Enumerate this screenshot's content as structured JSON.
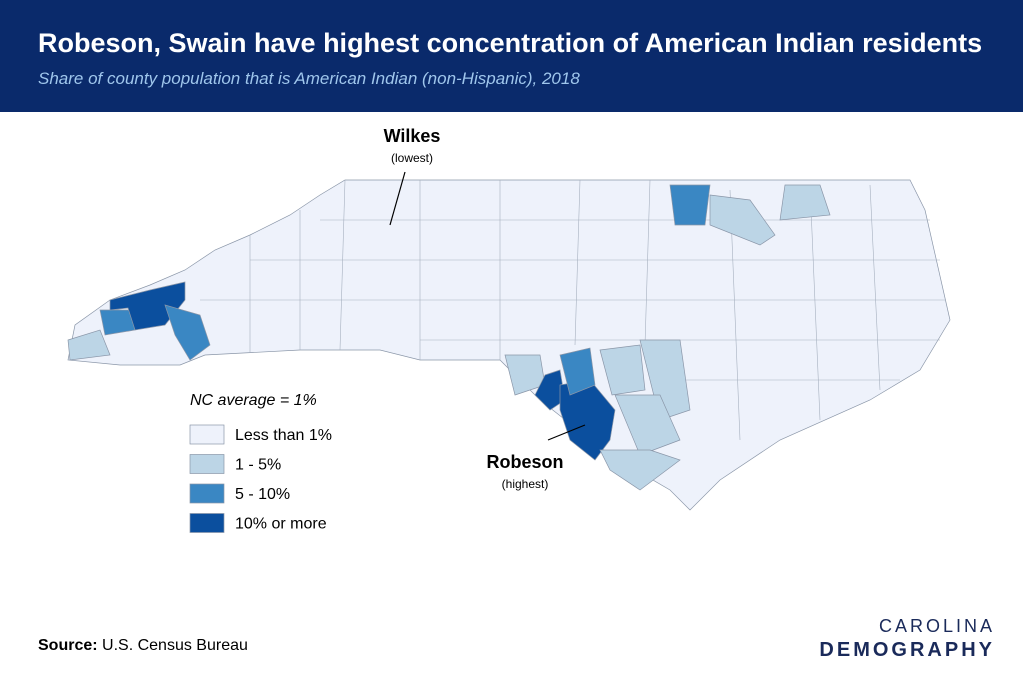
{
  "header": {
    "title": "Robeson, Swain have highest concentration of American Indian residents",
    "subtitle": "Share of county population that is American Indian (non-Hispanic), 2018"
  },
  "annotations": [
    {
      "label": "Wilkes",
      "note": "(lowest)"
    },
    {
      "label": "Robeson",
      "note": "(highest)"
    }
  ],
  "legend": {
    "title": "NC average = 1%",
    "items": [
      {
        "label": "Less than 1%",
        "color": "#eef2fb"
      },
      {
        "label": "1 - 5%",
        "color": "#bcd5e6"
      },
      {
        "label": "5 - 10%",
        "color": "#3a87c3"
      },
      {
        "label": "10% or more",
        "color": "#0b4f9e"
      }
    ]
  },
  "source": {
    "label": "Source:",
    "text": "U.S. Census Bureau"
  },
  "logo": {
    "line1": "CAROLINA",
    "line2": "DEMOGRAPHY"
  }
}
